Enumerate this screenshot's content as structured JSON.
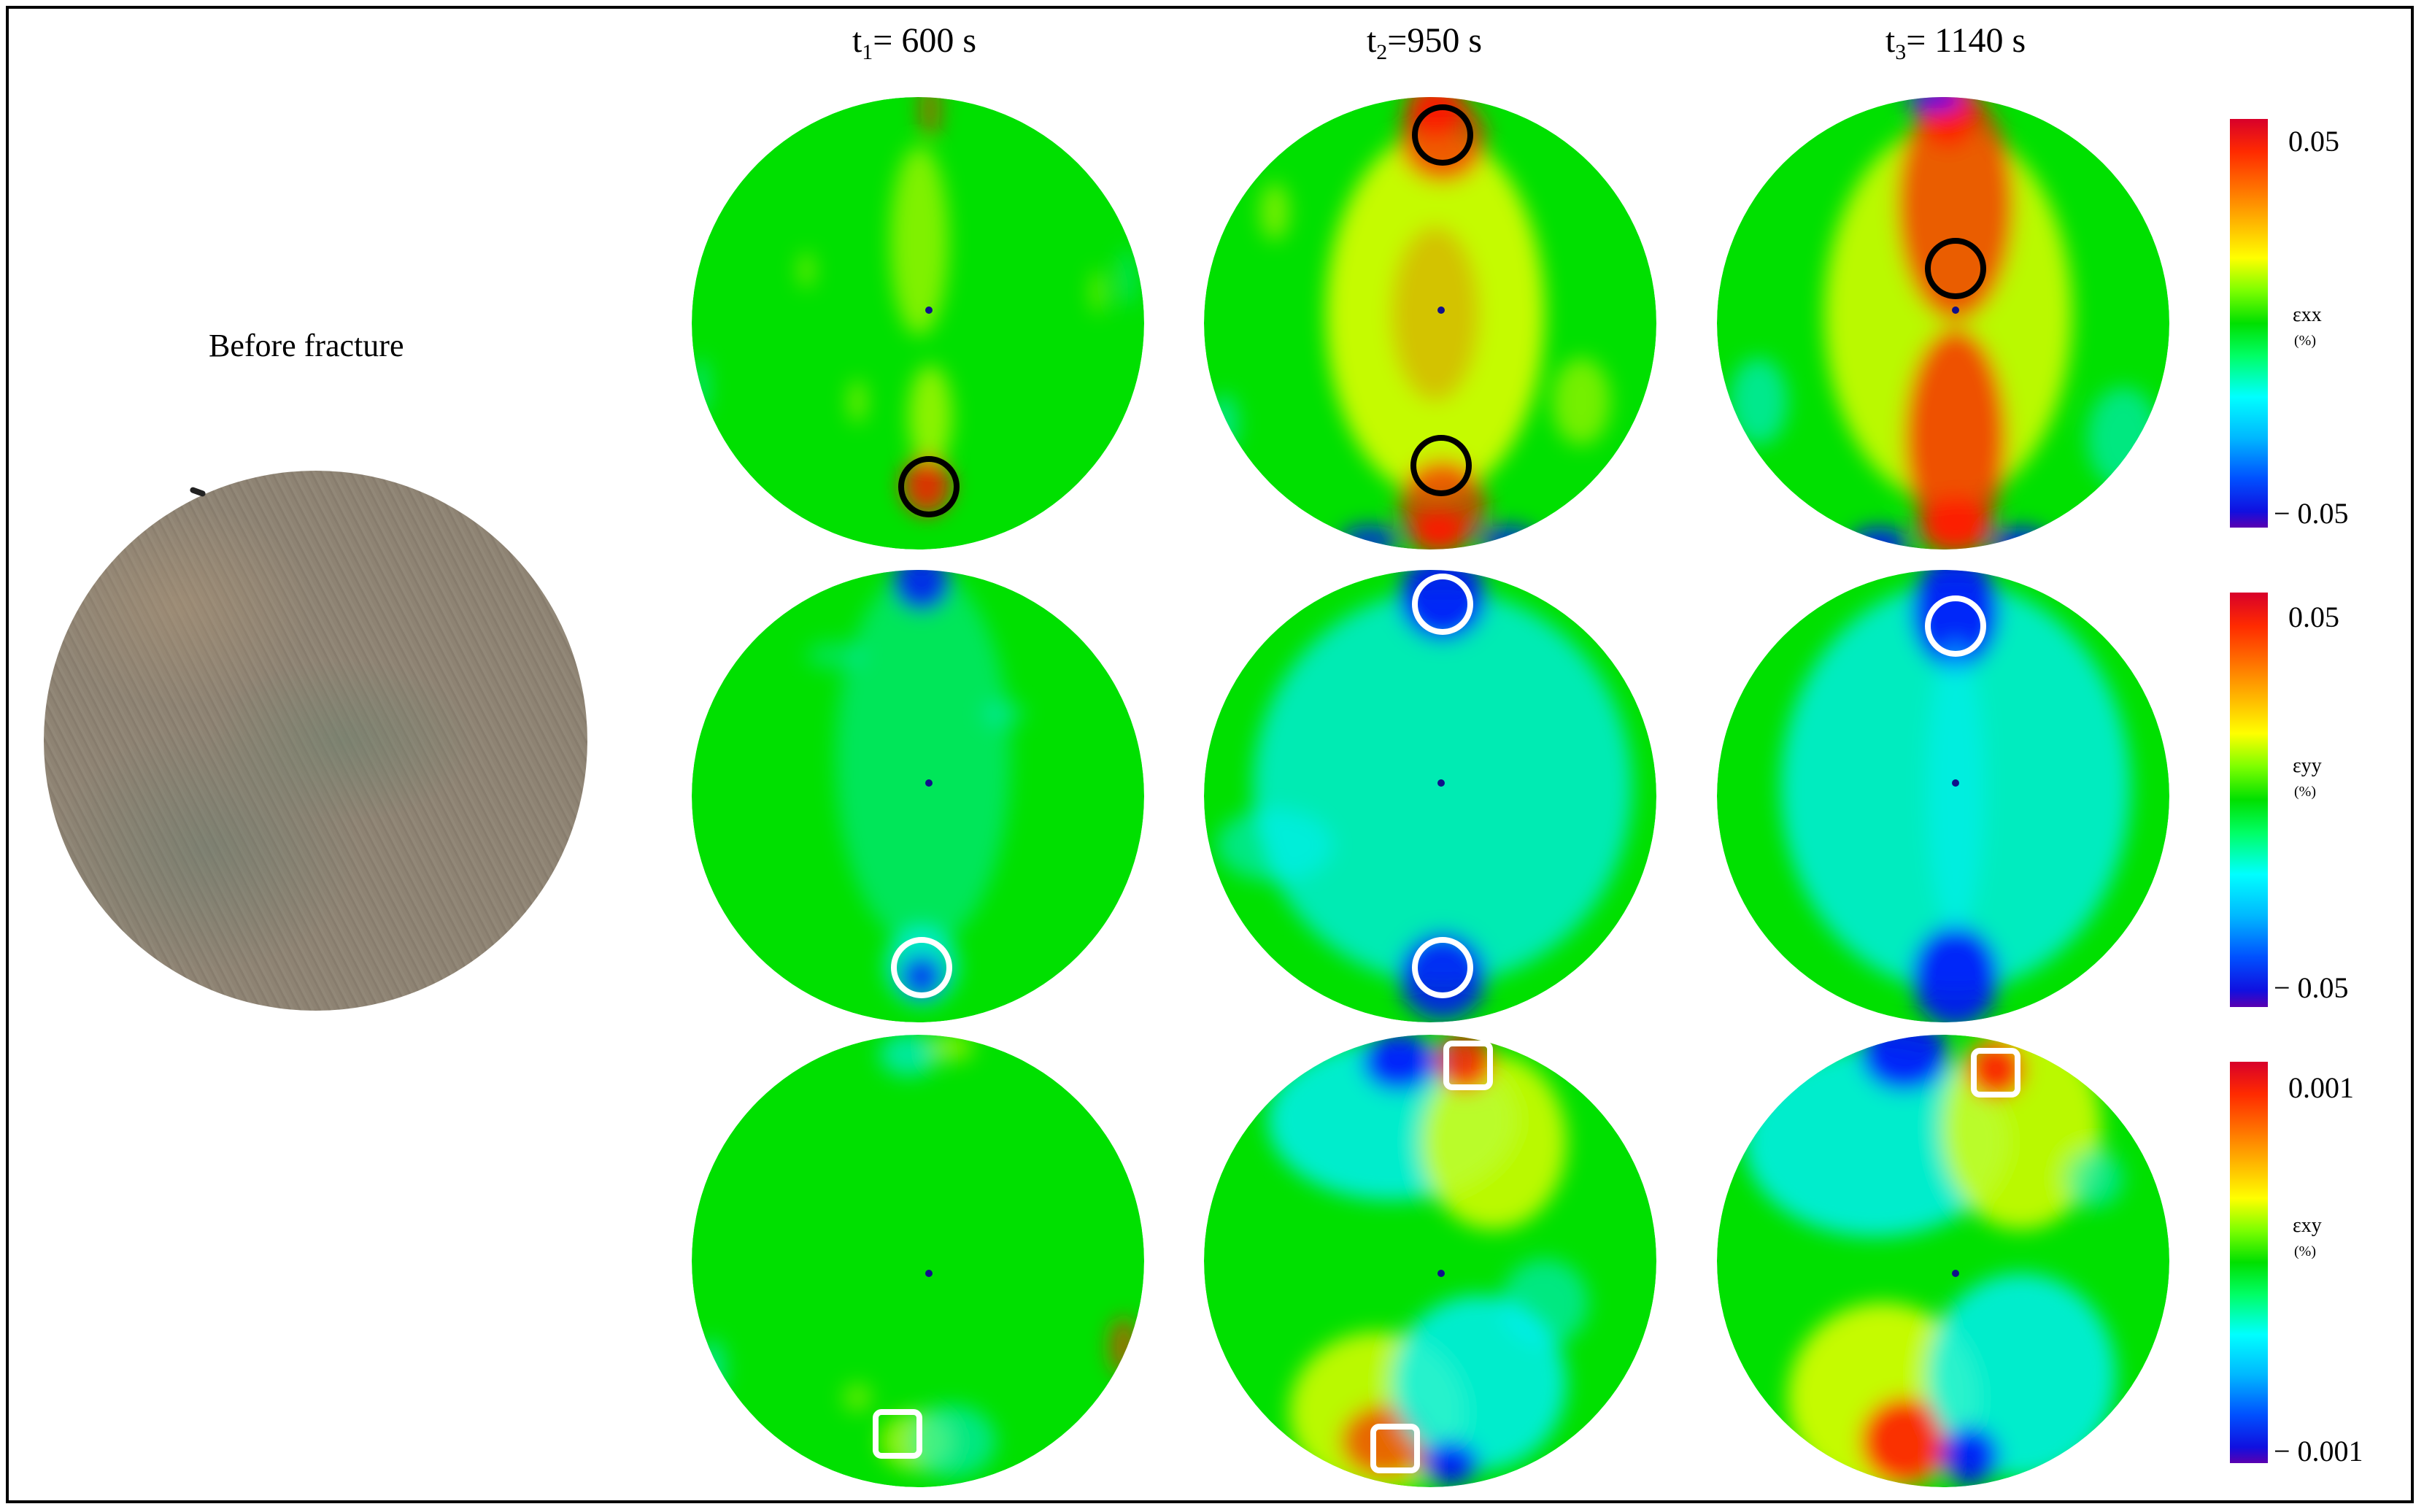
{
  "figure": {
    "columns": [
      {
        "label": "t",
        "sub": "1",
        "value": "= 600 s"
      },
      {
        "label": "t",
        "sub": "2",
        "value": "=950 s"
      },
      {
        "label": "t",
        "sub": "3",
        "value": "= 1140 s"
      }
    ],
    "before_label": "Before fracture",
    "rows": [
      {
        "symbol": "εxx",
        "unit": "(%)",
        "max": "0.05",
        "min": "− 0.05",
        "marker": "circle",
        "marker_color": "#000000"
      },
      {
        "symbol": "εyy",
        "unit": "(%)",
        "max": "0.05",
        "min": "− 0.05",
        "marker": "circle",
        "marker_color": "#ffffff"
      },
      {
        "symbol": "εxy",
        "unit": "(%)",
        "max": "0.001",
        "min": "− 0.001",
        "marker": "square",
        "marker_color": "#ffffff"
      }
    ],
    "colors": {
      "background_green": "#00e000",
      "high_red": "#ff1a00",
      "mid_yellow": "#e8ff00",
      "low_cyan": "#00f0ff",
      "min_blue": "#0010ff"
    }
  }
}
